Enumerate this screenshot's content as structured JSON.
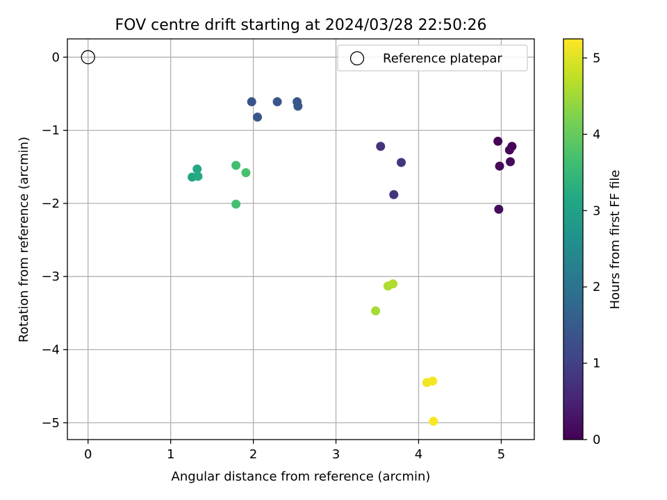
{
  "chart_data": {
    "type": "scatter",
    "title": "FOV centre drift starting at 2024/03/28 22:50:26",
    "xlabel": "Angular distance from reference (arcmin)",
    "ylabel": "Rotation from reference (arcmin)",
    "xlim": [
      -0.25,
      5.4
    ],
    "ylim": [
      -5.23,
      0.25
    ],
    "xticks": [
      0,
      1,
      2,
      3,
      4,
      5
    ],
    "xtick_labels": [
      "0",
      "1",
      "2",
      "3",
      "4",
      "5"
    ],
    "yticks": [
      0,
      -1,
      -2,
      -3,
      -4,
      -5
    ],
    "ytick_labels": [
      "0",
      "−1",
      "−2",
      "−3",
      "−4",
      "−5"
    ],
    "grid": true,
    "legend": {
      "placement": "top-right",
      "entries": [
        "Reference platepar"
      ]
    },
    "reference_point": {
      "x": 0,
      "y": 0,
      "marker": "open-circle",
      "name": "Reference platepar"
    },
    "colorbar": {
      "label": "Hours from first FF file",
      "range": [
        0,
        5.25
      ],
      "ticks": [
        0,
        1,
        2,
        3,
        4,
        5
      ],
      "tick_labels": [
        "0",
        "1",
        "2",
        "3",
        "4",
        "5"
      ],
      "colormap": "viridis"
    },
    "points": [
      {
        "x": 4.96,
        "y": -1.15,
        "c": 0.02
      },
      {
        "x": 5.13,
        "y": -1.22,
        "c": 0.05
      },
      {
        "x": 5.1,
        "y": -1.27,
        "c": 0.08
      },
      {
        "x": 4.98,
        "y": -1.49,
        "c": 0.1
      },
      {
        "x": 5.11,
        "y": -1.43,
        "c": 0.12
      },
      {
        "x": 4.97,
        "y": -2.08,
        "c": 0.15
      },
      {
        "x": 3.54,
        "y": -1.22,
        "c": 0.75
      },
      {
        "x": 3.79,
        "y": -1.44,
        "c": 0.8
      },
      {
        "x": 3.7,
        "y": -1.88,
        "c": 0.78
      },
      {
        "x": 1.98,
        "y": -0.61,
        "c": 1.35
      },
      {
        "x": 2.29,
        "y": -0.61,
        "c": 1.38
      },
      {
        "x": 2.53,
        "y": -0.61,
        "c": 1.4
      },
      {
        "x": 2.54,
        "y": -0.67,
        "c": 1.42
      },
      {
        "x": 2.05,
        "y": -0.82,
        "c": 1.4
      },
      {
        "x": 1.32,
        "y": -1.53,
        "c": 3.15
      },
      {
        "x": 1.26,
        "y": -1.64,
        "c": 3.1
      },
      {
        "x": 1.33,
        "y": -1.63,
        "c": 3.2
      },
      {
        "x": 1.79,
        "y": -1.48,
        "c": 3.65
      },
      {
        "x": 1.91,
        "y": -1.58,
        "c": 3.7
      },
      {
        "x": 1.79,
        "y": -2.01,
        "c": 3.68
      },
      {
        "x": 3.48,
        "y": -3.47,
        "c": 4.55
      },
      {
        "x": 3.63,
        "y": -3.13,
        "c": 4.6
      },
      {
        "x": 3.69,
        "y": -3.1,
        "c": 4.62
      },
      {
        "x": 4.1,
        "y": -4.45,
        "c": 5.15
      },
      {
        "x": 4.17,
        "y": -4.43,
        "c": 5.18
      },
      {
        "x": 4.18,
        "y": -4.98,
        "c": 5.22
      }
    ]
  }
}
